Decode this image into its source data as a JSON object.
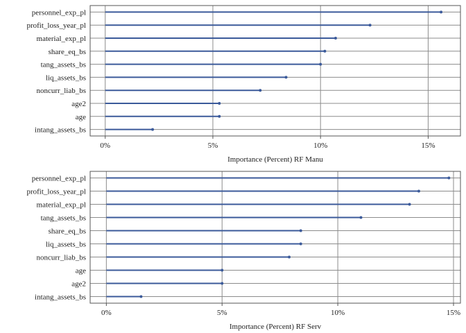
{
  "chart_data": [
    {
      "type": "lollipop",
      "xlabel": "Importance (Percent) RF Manu",
      "xlim": [
        -0.7,
        16.5
      ],
      "xticks": [
        0,
        5,
        10,
        15
      ],
      "xtick_labels": [
        "0%",
        "5%",
        "10%",
        "15%"
      ],
      "grid": true,
      "color": "#3B5A9A",
      "categories": [
        "personnel_exp_pl",
        "profit_loss_year_pl",
        "material_exp_pl",
        "share_eq_bs",
        "tang_assets_bs",
        "liq_assets_bs",
        "noncurr_liab_bs",
        "age2",
        "age",
        "intang_assets_bs"
      ],
      "values": [
        15.6,
        12.3,
        10.7,
        10.2,
        10.0,
        8.4,
        7.2,
        5.3,
        5.3,
        2.2
      ]
    },
    {
      "type": "lollipop",
      "xlabel": "Importance (Percent) RF Serv",
      "xlim": [
        -0.7,
        15.3
      ],
      "xticks": [
        0,
        5,
        10,
        15
      ],
      "xtick_labels": [
        "0%",
        "5%",
        "10%",
        "15%"
      ],
      "grid": true,
      "color": "#3B5A9A",
      "categories": [
        "personnel_exp_pl",
        "profit_loss_year_pl",
        "material_exp_pl",
        "tang_assets_bs",
        "share_eq_bs",
        "liq_assets_bs",
        "noncurr_liab_bs",
        "age",
        "age2",
        "intang_assets_bs"
      ],
      "values": [
        14.8,
        13.5,
        13.1,
        11.0,
        8.4,
        8.4,
        7.9,
        5.0,
        5.0,
        1.5
      ]
    }
  ]
}
